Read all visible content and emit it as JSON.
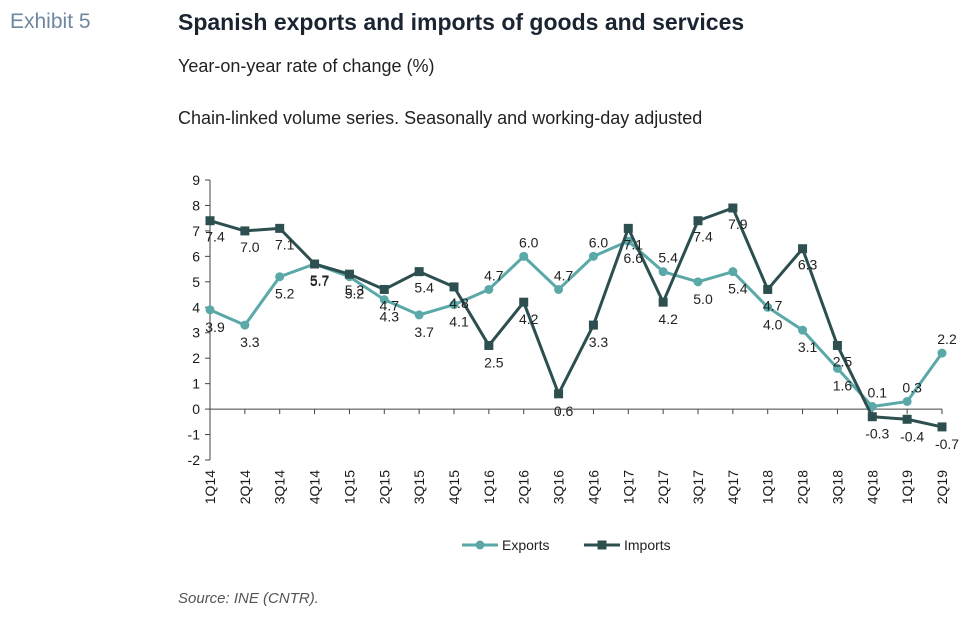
{
  "header": {
    "exhibit": "Exhibit 5",
    "title": "Spanish exports and imports of goods and services",
    "subtitle": "Year-on-year rate of change (%)",
    "note": "Chain-linked volume series. Seasonally and working-day adjusted"
  },
  "footer": {
    "source": "Source: INE (CNTR)."
  },
  "chart_data": {
    "type": "line",
    "title": "",
    "xlabel": "",
    "ylabel": "",
    "ylim": [
      -2,
      9
    ],
    "yticks": [
      -2,
      -1,
      0,
      1,
      2,
      3,
      4,
      5,
      6,
      7,
      8,
      9
    ],
    "categories": [
      "1Q14",
      "2Q14",
      "3Q14",
      "4Q14",
      "1Q15",
      "2Q15",
      "3Q15",
      "4Q15",
      "1Q16",
      "2Q16",
      "3Q16",
      "4Q16",
      "1Q17",
      "2Q17",
      "3Q17",
      "4Q17",
      "1Q18",
      "2Q18",
      "3Q18",
      "4Q18",
      "1Q19",
      "2Q19"
    ],
    "legend": "bottom",
    "series": [
      {
        "name": "Exports",
        "color": "#5ba8a8",
        "marker": "circle",
        "values": [
          3.9,
          3.3,
          5.2,
          5.7,
          5.2,
          4.3,
          3.7,
          4.1,
          4.7,
          6.0,
          4.7,
          6.0,
          6.6,
          5.4,
          5.0,
          5.4,
          4.0,
          3.1,
          1.6,
          0.1,
          0.3,
          2.2
        ]
      },
      {
        "name": "Imports",
        "color": "#2d4f4f",
        "marker": "square",
        "values": [
          7.4,
          7.0,
          7.1,
          5.7,
          5.3,
          4.7,
          5.4,
          4.8,
          2.5,
          4.2,
          0.6,
          3.3,
          7.1,
          4.2,
          7.4,
          7.9,
          4.7,
          6.3,
          2.5,
          -0.3,
          -0.4,
          -0.7
        ]
      }
    ]
  }
}
